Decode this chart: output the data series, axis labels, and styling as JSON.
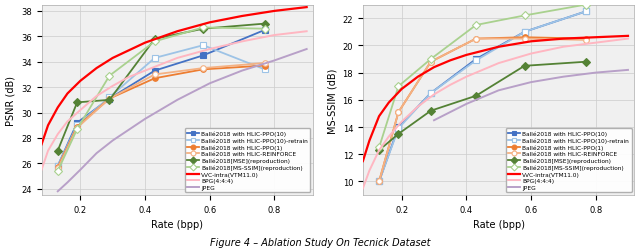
{
  "left_ylabel": "PSNR (dB)",
  "right_ylabel": "MS-SSIM (dB)",
  "xlabel": "Rate (bpp)",
  "left_ylim": [
    23.5,
    38.5
  ],
  "right_ylim": [
    9.0,
    23.0
  ],
  "xlim": [
    0.08,
    0.92
  ],
  "caption": "Figure 4 – Ablation Study On Tecnick Dataset",
  "series": [
    {
      "label": "Ballé2018 with HLIC-PPO(10)",
      "color": "#4472C4",
      "marker": "s",
      "lw": 1.3,
      "ms": 4,
      "filled": true,
      "psnr_x": [
        0.13,
        0.19,
        0.29,
        0.43,
        0.58,
        0.77
      ],
      "psnr_y": [
        25.8,
        29.2,
        31.1,
        33.3,
        34.5,
        36.5
      ],
      "msssim_x": [
        0.13,
        0.19,
        0.29,
        0.43,
        0.58,
        0.77
      ],
      "msssim_y": [
        10.0,
        14.0,
        16.5,
        19.0,
        21.0,
        22.5
      ]
    },
    {
      "label": "Ballé2018 with HLIC-PPO(10)-retrain",
      "color": "#9DC3E6",
      "marker": "s",
      "lw": 1.3,
      "ms": 4,
      "filled": false,
      "psnr_x": [
        0.13,
        0.19,
        0.29,
        0.43,
        0.58,
        0.77
      ],
      "psnr_y": [
        25.8,
        29.0,
        31.2,
        34.3,
        35.3,
        33.4
      ],
      "msssim_x": [
        0.13,
        0.19,
        0.29,
        0.43,
        0.58,
        0.77
      ],
      "msssim_y": [
        10.0,
        13.9,
        16.5,
        18.9,
        21.0,
        22.5
      ]
    },
    {
      "label": "Ballé2018 with HLIC-PPO(1)",
      "color": "#ED7D31",
      "marker": "o",
      "lw": 1.3,
      "ms": 4,
      "filled": true,
      "psnr_x": [
        0.13,
        0.19,
        0.29,
        0.43,
        0.58,
        0.77
      ],
      "psnr_y": [
        25.7,
        28.9,
        31.1,
        32.7,
        33.4,
        33.7
      ],
      "msssim_x": [
        0.13,
        0.19,
        0.29,
        0.43,
        0.58,
        0.77
      ],
      "msssim_y": [
        10.0,
        15.1,
        18.8,
        20.5,
        20.6,
        20.5
      ]
    },
    {
      "label": "Ballé2018 with HLIC-REINFORCE",
      "color": "#F4B183",
      "marker": "o",
      "lw": 1.3,
      "ms": 4,
      "filled": false,
      "psnr_x": [
        0.13,
        0.19,
        0.29,
        0.43,
        0.58,
        0.77
      ],
      "psnr_y": [
        25.6,
        28.8,
        31.1,
        33.0,
        33.5,
        33.9
      ],
      "msssim_x": [
        0.13,
        0.19,
        0.29,
        0.43,
        0.58,
        0.77
      ],
      "msssim_y": [
        10.0,
        15.1,
        18.8,
        20.5,
        20.5,
        20.4
      ]
    },
    {
      "label": "Ballé2018[MSE](reproduction)",
      "color": "#548235",
      "marker": "D",
      "lw": 1.3,
      "ms": 4,
      "filled": true,
      "psnr_x": [
        0.13,
        0.19,
        0.29,
        0.43,
        0.58,
        0.77
      ],
      "psnr_y": [
        27.0,
        30.8,
        31.0,
        35.8,
        36.6,
        37.0
      ],
      "msssim_x": [
        0.13,
        0.19,
        0.29,
        0.43,
        0.58,
        0.77
      ],
      "msssim_y": [
        12.3,
        13.5,
        15.2,
        16.3,
        18.5,
        18.8
      ]
    },
    {
      "label": "Ballé2018[MS-SSIM](reproduction)",
      "color": "#A9D18E",
      "marker": "D",
      "lw": 1.3,
      "ms": 4,
      "filled": false,
      "psnr_x": [
        0.13,
        0.19,
        0.29,
        0.43,
        0.58,
        0.77
      ],
      "psnr_y": [
        25.4,
        28.7,
        32.9,
        35.6,
        36.7,
        36.6
      ],
      "msssim_x": [
        0.13,
        0.19,
        0.29,
        0.43,
        0.58,
        0.77
      ],
      "msssim_y": [
        12.5,
        17.0,
        19.0,
        21.5,
        22.2,
        23.0
      ]
    },
    {
      "label": "VVC-intra(VTM11.0)",
      "color": "#FF0000",
      "marker": null,
      "lw": 1.6,
      "ms": 0,
      "filled": true,
      "psnr_x": [
        0.08,
        0.1,
        0.13,
        0.16,
        0.2,
        0.25,
        0.3,
        0.35,
        0.4,
        0.5,
        0.6,
        0.7,
        0.8,
        0.9
      ],
      "psnr_y": [
        27.5,
        29.0,
        30.4,
        31.5,
        32.5,
        33.5,
        34.3,
        34.9,
        35.5,
        36.4,
        37.1,
        37.6,
        38.0,
        38.3
      ],
      "msssim_x": [
        0.08,
        0.1,
        0.13,
        0.16,
        0.2,
        0.25,
        0.3,
        0.35,
        0.4,
        0.5,
        0.6,
        0.7,
        0.8,
        0.9
      ],
      "msssim_y": [
        11.5,
        13.0,
        14.8,
        15.8,
        16.8,
        17.7,
        18.4,
        18.9,
        19.3,
        19.9,
        20.3,
        20.5,
        20.6,
        20.7
      ]
    },
    {
      "label": "BPG(4:4:4)",
      "color": "#FFB6C1",
      "marker": null,
      "lw": 1.4,
      "ms": 0,
      "filled": true,
      "psnr_x": [
        0.08,
        0.1,
        0.13,
        0.16,
        0.2,
        0.25,
        0.3,
        0.35,
        0.4,
        0.5,
        0.6,
        0.7,
        0.8,
        0.9
      ],
      "psnr_y": [
        25.5,
        27.0,
        28.3,
        29.3,
        30.2,
        31.3,
        32.1,
        32.8,
        33.3,
        34.3,
        35.0,
        35.6,
        36.1,
        36.4
      ],
      "msssim_x": [
        0.08,
        0.1,
        0.13,
        0.16,
        0.2,
        0.25,
        0.3,
        0.35,
        0.4,
        0.5,
        0.6,
        0.7,
        0.8,
        0.9
      ],
      "msssim_y": [
        9.5,
        10.8,
        12.3,
        13.3,
        14.4,
        15.5,
        16.4,
        17.1,
        17.7,
        18.7,
        19.4,
        19.9,
        20.2,
        20.5
      ]
    },
    {
      "label": "JPEG",
      "color": "#B8A0C8",
      "marker": null,
      "lw": 1.4,
      "ms": 0,
      "filled": true,
      "psnr_x": [
        0.13,
        0.16,
        0.2,
        0.25,
        0.3,
        0.4,
        0.5,
        0.6,
        0.7,
        0.8,
        0.9
      ],
      "psnr_y": [
        23.8,
        24.5,
        25.5,
        26.8,
        27.8,
        29.5,
        31.0,
        32.3,
        33.3,
        34.1,
        35.0
      ],
      "msssim_x": [
        0.3,
        0.4,
        0.5,
        0.6,
        0.7,
        0.8,
        0.9
      ],
      "msssim_y": [
        14.5,
        15.7,
        16.7,
        17.3,
        17.7,
        18.0,
        18.2
      ]
    }
  ],
  "grid_color": "#cccccc",
  "bg_color": "#f0f0f0",
  "xticks": [
    0.2,
    0.4,
    0.6,
    0.8
  ],
  "left_yticks": [
    24,
    26,
    28,
    30,
    32,
    34,
    36,
    38
  ],
  "right_yticks": [
    10,
    12,
    14,
    16,
    18,
    20,
    22
  ]
}
